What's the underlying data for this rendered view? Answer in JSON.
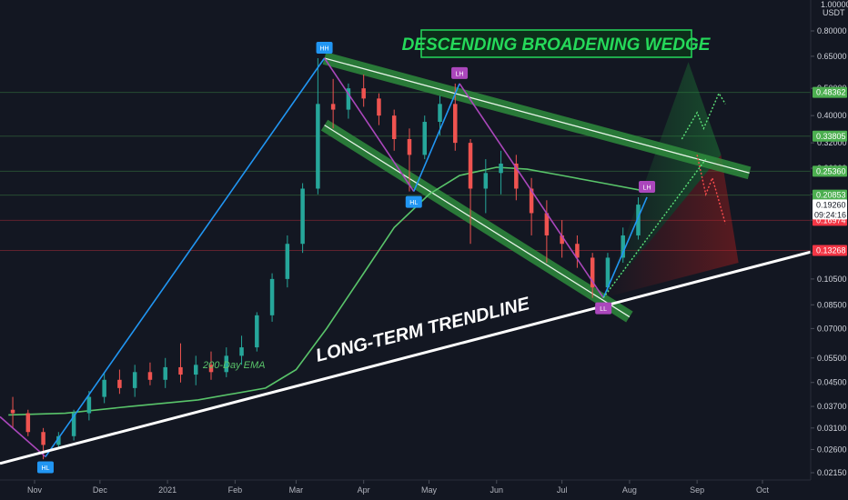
{
  "colors": {
    "background": "#131722",
    "up_candle": "#26a69a",
    "down_candle": "#ef5350",
    "ema": "#59c46a",
    "wedge_fill": "#2e8b3c",
    "blue_line": "#2196f3",
    "purple_line": "#ab47bc",
    "trendline": "#ffffff",
    "title": "#25d95a"
  },
  "header": {
    "axis_top": "1.00000",
    "currency": "USDT"
  },
  "annotations": {
    "title": "DESCENDING BROADENING WEDGE",
    "trendline_label": "LONG-TERM TRENDLINE",
    "ema_label": "200-Day EMA"
  },
  "chart_data": {
    "type": "candlestick",
    "y_scale": "log",
    "ylim": [
      0.0215,
      1.0
    ],
    "y_ticks": [
      "0.80000",
      "0.65000",
      "0.50000",
      "0.40000",
      "0.32000",
      "0.26000",
      "0.21000",
      "0.17000",
      "0.13000",
      "0.10500",
      "0.08500",
      "0.07000",
      "0.05500",
      "0.04500",
      "0.03700",
      "0.03100",
      "0.02600",
      "0.02150"
    ],
    "x_labels": [
      "Nov",
      "Dec",
      "2021",
      "Feb",
      "Mar",
      "Apr",
      "May",
      "Jun",
      "Jul",
      "Aug",
      "Sep",
      "Oct"
    ],
    "x_range": [
      "2020-10-20",
      "2021-10-15"
    ],
    "last_price": {
      "value": "0.19260",
      "countdown": "09:24:16"
    },
    "price_levels": [
      {
        "value": "0.48362",
        "color": "#4caf50"
      },
      {
        "value": "0.33805",
        "color": "#4caf50"
      },
      {
        "value": "0.25360",
        "color": "#4caf50"
      },
      {
        "value": "0.20853",
        "color": "#4caf50"
      },
      {
        "value": "0.16974",
        "color": "#f23645"
      },
      {
        "value": "0.13268",
        "color": "#f23645"
      }
    ],
    "swing_points": [
      {
        "label": "HL",
        "date": "2020-11-06",
        "price": 0.0245,
        "color": "#2196f3",
        "position": "below"
      },
      {
        "label": "HH",
        "date": "2021-03-14",
        "price": 0.64,
        "color": "#2196f3",
        "position": "above"
      },
      {
        "label": "HL",
        "date": "2021-04-24",
        "price": 0.215,
        "color": "#2196f3",
        "position": "below"
      },
      {
        "label": "LH",
        "date": "2021-05-15",
        "price": 0.52,
        "color": "#ab47bc",
        "position": "above"
      },
      {
        "label": "LL",
        "date": "2021-07-20",
        "price": 0.09,
        "color": "#ab47bc",
        "position": "below"
      },
      {
        "label": "LH",
        "date": "2021-08-09",
        "price": 0.205,
        "color": "#ab47bc",
        "position": "above"
      }
    ],
    "ohlc_weekly": [
      [
        "2020-10-22",
        0.036,
        0.04,
        0.031,
        0.035
      ],
      [
        "2020-10-29",
        0.035,
        0.036,
        0.029,
        0.03
      ],
      [
        "2020-11-05",
        0.03,
        0.031,
        0.024,
        0.027
      ],
      [
        "2020-11-12",
        0.027,
        0.03,
        0.026,
        0.029
      ],
      [
        "2020-11-19",
        0.029,
        0.036,
        0.028,
        0.035
      ],
      [
        "2020-11-26",
        0.035,
        0.042,
        0.033,
        0.04
      ],
      [
        "2020-12-03",
        0.04,
        0.049,
        0.038,
        0.046
      ],
      [
        "2020-12-10",
        0.046,
        0.05,
        0.041,
        0.043
      ],
      [
        "2020-12-17",
        0.043,
        0.052,
        0.04,
        0.049
      ],
      [
        "2020-12-24",
        0.049,
        0.053,
        0.044,
        0.046
      ],
      [
        "2020-12-31",
        0.046,
        0.055,
        0.043,
        0.051
      ],
      [
        "2021-01-07",
        0.051,
        0.062,
        0.045,
        0.048
      ],
      [
        "2021-01-14",
        0.048,
        0.056,
        0.044,
        0.052
      ],
      [
        "2021-01-21",
        0.052,
        0.058,
        0.046,
        0.049
      ],
      [
        "2021-01-28",
        0.049,
        0.06,
        0.047,
        0.056
      ],
      [
        "2021-02-04",
        0.056,
        0.066,
        0.052,
        0.06
      ],
      [
        "2021-02-11",
        0.06,
        0.08,
        0.058,
        0.078
      ],
      [
        "2021-02-18",
        0.078,
        0.11,
        0.074,
        0.105
      ],
      [
        "2021-02-25",
        0.105,
        0.15,
        0.098,
        0.14
      ],
      [
        "2021-03-04",
        0.14,
        0.23,
        0.13,
        0.22
      ],
      [
        "2021-03-11",
        0.22,
        0.64,
        0.21,
        0.44
      ],
      [
        "2021-03-18",
        0.44,
        0.54,
        0.36,
        0.42
      ],
      [
        "2021-03-25",
        0.42,
        0.52,
        0.39,
        0.5
      ],
      [
        "2021-04-01",
        0.5,
        0.56,
        0.43,
        0.46
      ],
      [
        "2021-04-08",
        0.46,
        0.48,
        0.37,
        0.4
      ],
      [
        "2021-04-15",
        0.4,
        0.42,
        0.3,
        0.33
      ],
      [
        "2021-04-22",
        0.33,
        0.36,
        0.215,
        0.29
      ],
      [
        "2021-04-29",
        0.29,
        0.4,
        0.28,
        0.38
      ],
      [
        "2021-05-06",
        0.38,
        0.47,
        0.34,
        0.44
      ],
      [
        "2021-05-13",
        0.44,
        0.52,
        0.3,
        0.32
      ],
      [
        "2021-05-20",
        0.32,
        0.33,
        0.14,
        0.22
      ],
      [
        "2021-05-27",
        0.22,
        0.28,
        0.18,
        0.25
      ],
      [
        "2021-06-03",
        0.25,
        0.3,
        0.21,
        0.27
      ],
      [
        "2021-06-10",
        0.27,
        0.29,
        0.2,
        0.22
      ],
      [
        "2021-06-17",
        0.22,
        0.24,
        0.15,
        0.18
      ],
      [
        "2021-06-24",
        0.18,
        0.2,
        0.12,
        0.15
      ],
      [
        "2021-07-01",
        0.15,
        0.17,
        0.125,
        0.14
      ],
      [
        "2021-07-08",
        0.14,
        0.15,
        0.115,
        0.125
      ],
      [
        "2021-07-15",
        0.125,
        0.13,
        0.09,
        0.098
      ],
      [
        "2021-07-22",
        0.098,
        0.13,
        0.095,
        0.125
      ],
      [
        "2021-07-29",
        0.125,
        0.16,
        0.12,
        0.15
      ],
      [
        "2021-08-05",
        0.15,
        0.205,
        0.145,
        0.193
      ]
    ],
    "ema_200": [
      [
        "2020-10-20",
        0.0345
      ],
      [
        "2020-11-15",
        0.035
      ],
      [
        "2020-12-15",
        0.037
      ],
      [
        "2021-01-15",
        0.039
      ],
      [
        "2021-02-15",
        0.043
      ],
      [
        "2021-03-01",
        0.05
      ],
      [
        "2021-03-15",
        0.07
      ],
      [
        "2021-04-01",
        0.11
      ],
      [
        "2021-04-15",
        0.16
      ],
      [
        "2021-05-01",
        0.21
      ],
      [
        "2021-05-15",
        0.245
      ],
      [
        "2021-06-01",
        0.262
      ],
      [
        "2021-06-15",
        0.258
      ],
      [
        "2021-07-01",
        0.245
      ],
      [
        "2021-07-20",
        0.23
      ],
      [
        "2021-08-09",
        0.215
      ]
    ]
  }
}
